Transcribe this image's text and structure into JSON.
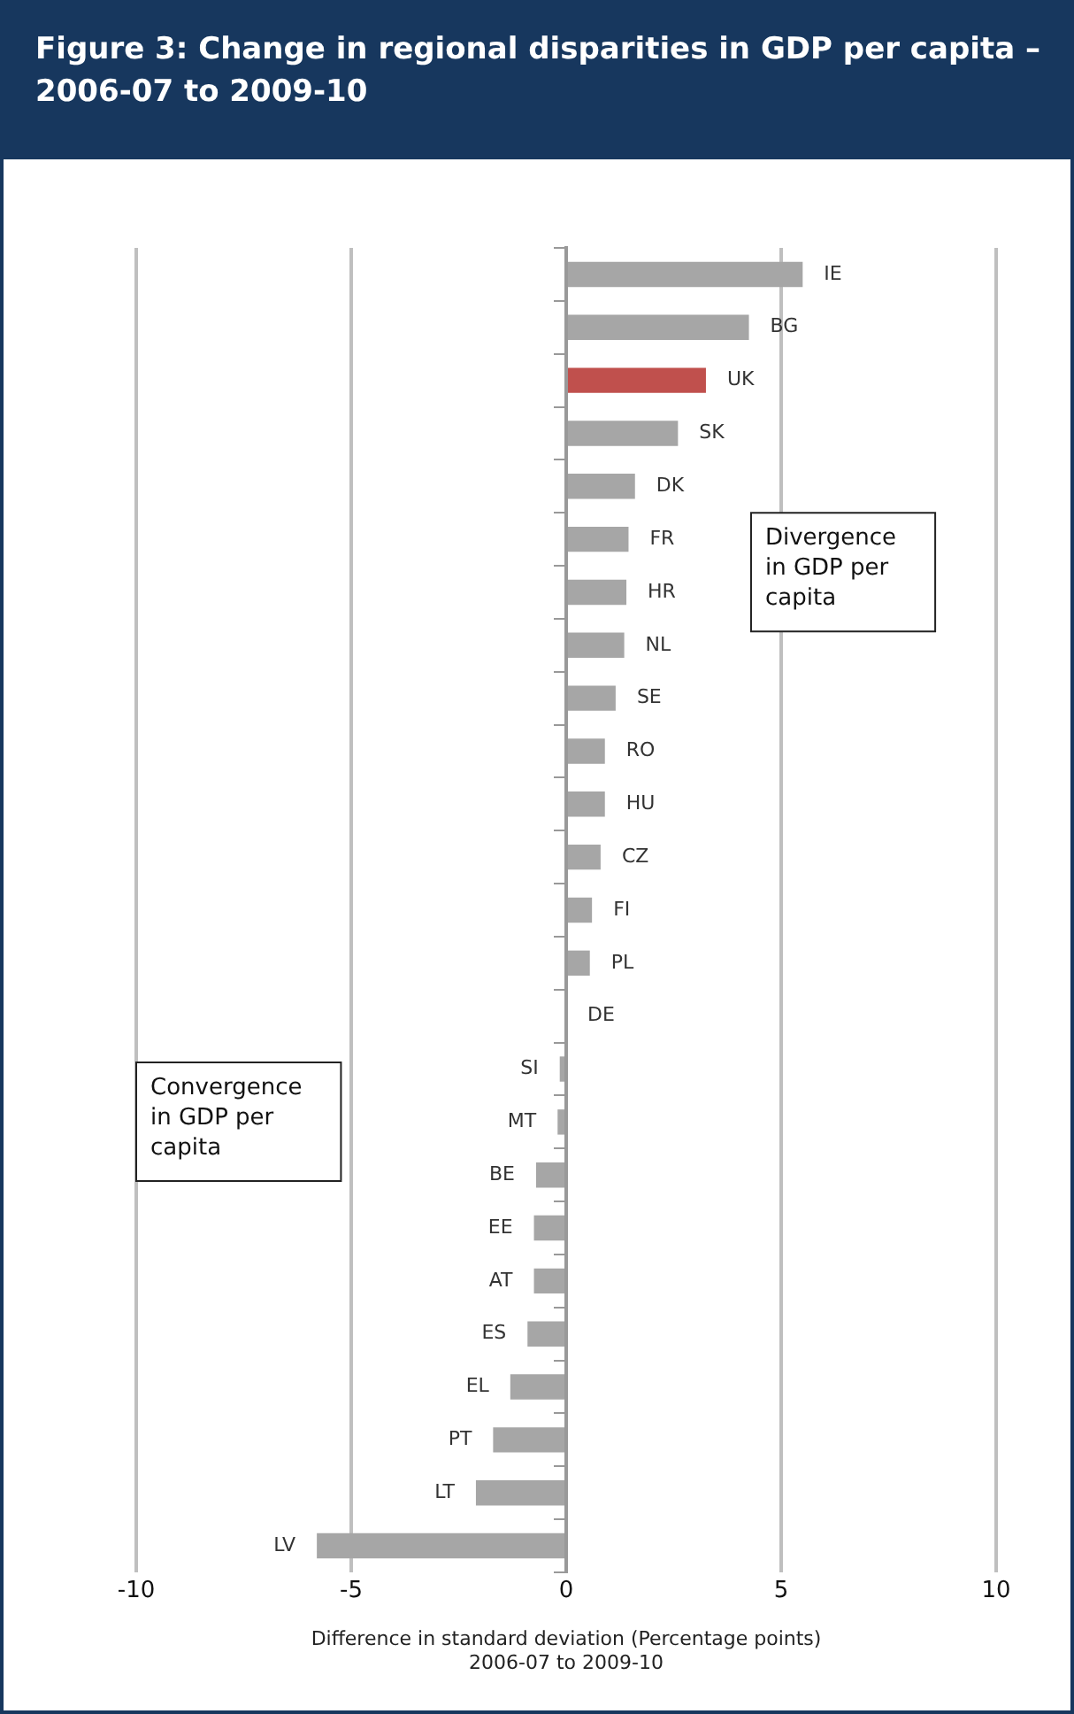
{
  "chart_data": {
    "type": "bar",
    "orientation": "horizontal",
    "title": "Figure 3: Change in regional disparities in GDP per capita – 2006-07 to 2009-10",
    "xlabel": "Difference in standard deviation (Percentage points)\n2006-07 to 2009-10",
    "categories": [
      "IE",
      "BG",
      "UK",
      "SK",
      "DK",
      "FR",
      "HR",
      "NL",
      "SE",
      "RO",
      "HU",
      "CZ",
      "FI",
      "PL",
      "DE",
      "SI",
      "MT",
      "BE",
      "EE",
      "AT",
      "ES",
      "EL",
      "PT",
      "LT",
      "LV"
    ],
    "values": [
      5.5,
      4.25,
      3.25,
      2.6,
      1.6,
      1.45,
      1.4,
      1.35,
      1.15,
      0.9,
      0.9,
      0.8,
      0.6,
      0.55,
      0,
      -0.15,
      -0.2,
      -0.7,
      -0.75,
      -0.75,
      -0.9,
      -1.3,
      -1.7,
      -2.1,
      -5.8
    ],
    "colors": [
      "#a6a6a6",
      "#a6a6a6",
      "#c0504d",
      "#a6a6a6",
      "#a6a6a6",
      "#a6a6a6",
      "#a6a6a6",
      "#a6a6a6",
      "#a6a6a6",
      "#a6a6a6",
      "#a6a6a6",
      "#a6a6a6",
      "#a6a6a6",
      "#a6a6a6",
      "#a6a6a6",
      "#a6a6a6",
      "#a6a6a6",
      "#a6a6a6",
      "#a6a6a6",
      "#a6a6a6",
      "#a6a6a6",
      "#a6a6a6",
      "#a6a6a6",
      "#a6a6a6",
      "#a6a6a6"
    ],
    "xlim": [
      -10,
      10
    ],
    "xticks": [
      -10,
      -5,
      0,
      5,
      10
    ],
    "grid": "x",
    "legend": false,
    "annotations": [
      "Divergence in GDP per capita",
      "Convergence in GDP per capita"
    ]
  }
}
